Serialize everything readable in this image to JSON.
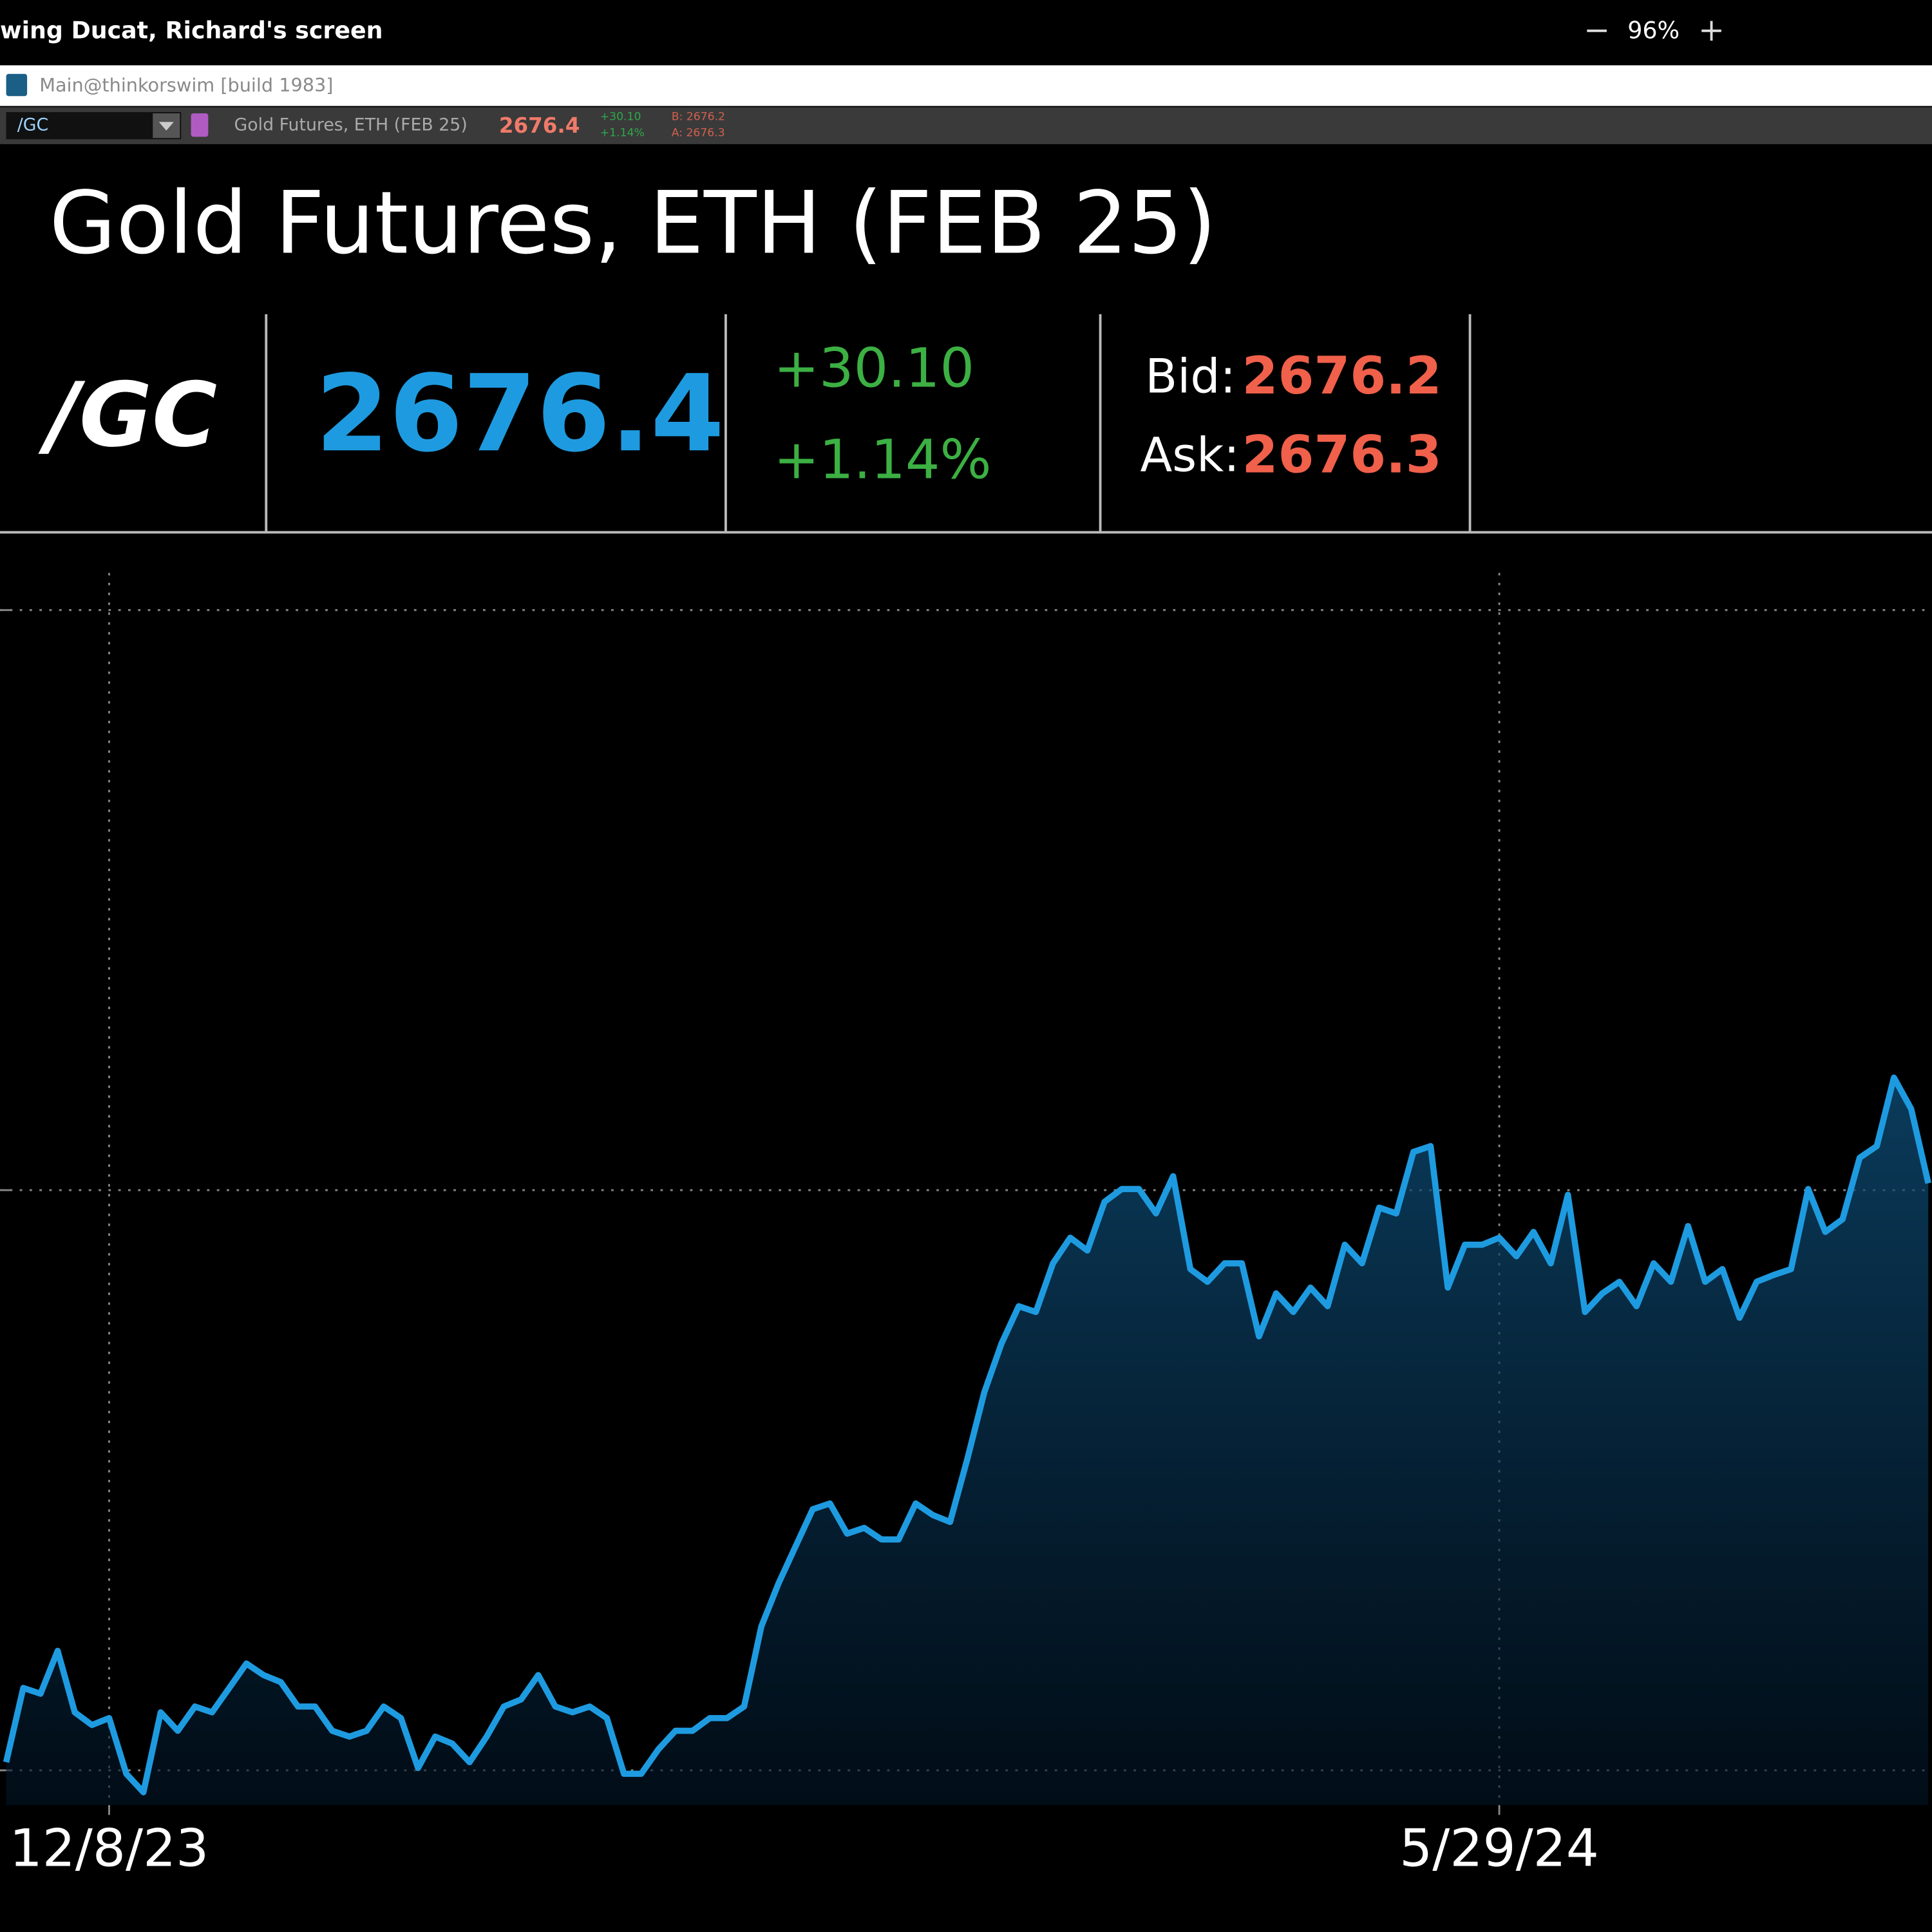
{
  "share_bar": {
    "title": "wing Ducat, Richard's screen",
    "zoom": "96%"
  },
  "window": {
    "title": "Main@thinkorswim [build 1983]"
  },
  "toolbar": {
    "symbol": "/GC",
    "description": "Gold Futures, ETH (FEB 25)",
    "last": "2676.4",
    "change": "+30.10",
    "percent_change": "+1.14%",
    "bid": "B: 2676.2",
    "ask": "A: 2676.3"
  },
  "header": {
    "title": "Gold Futures, ETH (FEB 25)",
    "symbol": "/GC",
    "last": "2676.4",
    "change": "+30.10",
    "percent_change": "+1.14%",
    "bid_label": "Bid:",
    "bid": "2676.2",
    "ask_label": "Ask:",
    "ask": "2676.3"
  },
  "chart_data": {
    "type": "area",
    "color": "#1e9be0",
    "categories": [
      null,
      null,
      null,
      null,
      null,
      null,
      "12/8/23",
      null,
      null,
      null,
      null,
      null,
      null,
      null,
      null,
      null,
      null,
      null,
      null,
      null,
      null,
      null,
      null,
      null,
      null,
      null,
      null,
      null,
      null,
      null,
      null,
      null,
      null,
      null,
      null,
      null,
      null,
      null,
      null,
      null,
      null,
      null,
      null,
      null,
      null,
      null,
      null,
      null,
      null,
      null,
      null,
      null,
      null,
      null,
      null,
      null,
      null,
      null,
      null,
      null,
      null,
      null,
      null,
      null,
      null,
      null,
      null,
      null,
      null,
      null,
      null,
      null,
      null,
      null,
      null,
      null,
      null,
      null,
      null,
      null,
      null,
      null,
      null,
      null,
      null,
      null,
      null,
      "5/29/24",
      null,
      null,
      null,
      null,
      null,
      null,
      null,
      null,
      null,
      null,
      null,
      null,
      null,
      null,
      null,
      null,
      null,
      null,
      null,
      null,
      null,
      null,
      null,
      null,
      null
    ],
    "values": [
      2007,
      2071,
      2066,
      2103,
      2050,
      2039,
      2045,
      1997,
      1981,
      2050,
      2034,
      2055,
      2050,
      2071,
      2092,
      2082,
      2076,
      2055,
      2055,
      2034,
      2029,
      2034,
      2055,
      2045,
      2002,
      2029,
      2023,
      2007,
      2029,
      2055,
      2061,
      2082,
      2055,
      2050,
      2055,
      2045,
      1997,
      1997,
      2018,
      2034,
      2034,
      2045,
      2045,
      2055,
      2124,
      2161,
      2193,
      2225,
      2230,
      2204,
      2209,
      2199,
      2199,
      2230,
      2220,
      2214,
      2268,
      2326,
      2368,
      2400,
      2395,
      2437,
      2459,
      2448,
      2490,
      2501,
      2501,
      2480,
      2512,
      2432,
      2421,
      2437,
      2437,
      2374,
      2411,
      2395,
      2416,
      2400,
      2453,
      2437,
      2485,
      2480,
      2533,
      2538,
      2416,
      2453,
      2453,
      2459,
      2443,
      2464,
      2437,
      2496,
      2395,
      2411,
      2421,
      2400,
      2437,
      2421,
      2469,
      2421,
      2432,
      2390,
      2421,
      2427,
      2432,
      2501,
      2464,
      2475,
      2528,
      2538,
      2597,
      2570,
      2506
    ],
    "ylim": [
      1970,
      3032
    ],
    "yticks": [
      2000,
      2500,
      3000
    ],
    "grid": true
  }
}
